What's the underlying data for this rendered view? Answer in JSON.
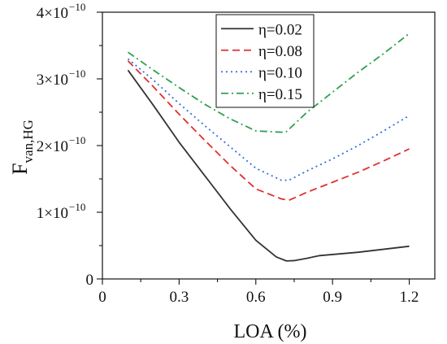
{
  "chart_data": {
    "type": "line",
    "title": "",
    "xlabel": "LOA (%)",
    "ylabel": {
      "main": "F",
      "subscript": "van,HG"
    },
    "xlim": [
      0,
      1.3
    ],
    "ylim": [
      0,
      4e-10
    ],
    "x_ticks": [
      {
        "value": 0,
        "label": "0"
      },
      {
        "value": 0.3,
        "label": "0.3"
      },
      {
        "value": 0.6,
        "label": "0.6"
      },
      {
        "value": 0.9,
        "label": "0.9"
      },
      {
        "value": 1.2,
        "label": "1.2"
      }
    ],
    "y_ticks": [
      {
        "value": 0,
        "base": "0",
        "exp": ""
      },
      {
        "value": 1e-10,
        "base": "1×10",
        "exp": "−10"
      },
      {
        "value": 2e-10,
        "base": "2×10",
        "exp": "−10"
      },
      {
        "value": 3e-10,
        "base": "3×10",
        "exp": "−10"
      },
      {
        "value": 4e-10,
        "base": "4×10",
        "exp": "−10"
      }
    ],
    "grid": false,
    "legend_position": "top-center",
    "series": [
      {
        "name": "η=0.02",
        "color": "#333333",
        "dash": "solid",
        "x": [
          0.1,
          0.2,
          0.3,
          0.4,
          0.5,
          0.6,
          0.68,
          0.72,
          0.75,
          0.8,
          0.85,
          1.0,
          1.2
        ],
        "y": [
          3.13e-10,
          2.6e-10,
          2.05e-10,
          1.55e-10,
          1.05e-10,
          5.8e-11,
          3.3e-11,
          2.7e-11,
          2.75e-11,
          3.1e-11,
          3.5e-11,
          4e-11,
          4.9e-11
        ]
      },
      {
        "name": "η=0.08",
        "color": "#e03030",
        "dash": "dashed",
        "x": [
          0.1,
          0.2,
          0.3,
          0.4,
          0.5,
          0.6,
          0.7,
          0.73,
          0.8,
          0.9,
          1.0,
          1.1,
          1.2
        ],
        "y": [
          3.27e-10,
          2.88e-10,
          2.47e-10,
          2.08e-10,
          1.7e-10,
          1.35e-10,
          1.2e-10,
          1.18e-10,
          1.3e-10,
          1.45e-10,
          1.6e-10,
          1.77e-10,
          1.95e-10
        ]
      },
      {
        "name": "η=0.10",
        "color": "#2f6fe0",
        "dash": "dotted",
        "x": [
          0.1,
          0.2,
          0.3,
          0.4,
          0.5,
          0.6,
          0.7,
          0.73,
          0.8,
          0.9,
          1.0,
          1.1,
          1.2
        ],
        "y": [
          3.3e-10,
          2.98e-10,
          2.63e-10,
          2.3e-10,
          1.98e-10,
          1.66e-10,
          1.48e-10,
          1.48e-10,
          1.62e-10,
          1.8e-10,
          2e-10,
          2.22e-10,
          2.45e-10
        ]
      },
      {
        "name": "η=0.15",
        "color": "#2ea14f",
        "dash": "dashdot",
        "x": [
          0.1,
          0.2,
          0.3,
          0.4,
          0.5,
          0.6,
          0.7,
          0.72,
          0.8,
          0.9,
          1.0,
          1.1,
          1.2
        ],
        "y": [
          3.4e-10,
          3.13e-10,
          2.87e-10,
          2.62e-10,
          2.4e-10,
          2.22e-10,
          2.2e-10,
          2.21e-10,
          2.5e-10,
          2.8e-10,
          3.1e-10,
          3.38e-10,
          3.68e-10
        ]
      }
    ]
  }
}
